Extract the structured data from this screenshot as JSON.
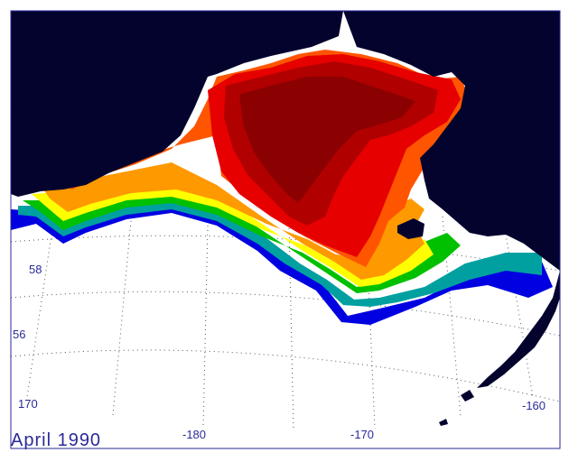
{
  "map": {
    "title": "April 1990",
    "colors": {
      "land": "#03032e",
      "water": "#ffffff",
      "frame": "#2a2a9a",
      "grid": "#555555",
      "ice_levels": [
        "#0000e0",
        "#00a0a0",
        "#00c000",
        "#ffff00",
        "#ff9900",
        "#ff5500",
        "#e60000",
        "#b00000",
        "#8b0000"
      ]
    },
    "graticule_labels": {
      "lat_58": "58",
      "lat_56": "56",
      "lon_w170_left": "170",
      "lon_m180": "-180",
      "lon_m170": "-170",
      "lon_m160": "-160"
    }
  }
}
